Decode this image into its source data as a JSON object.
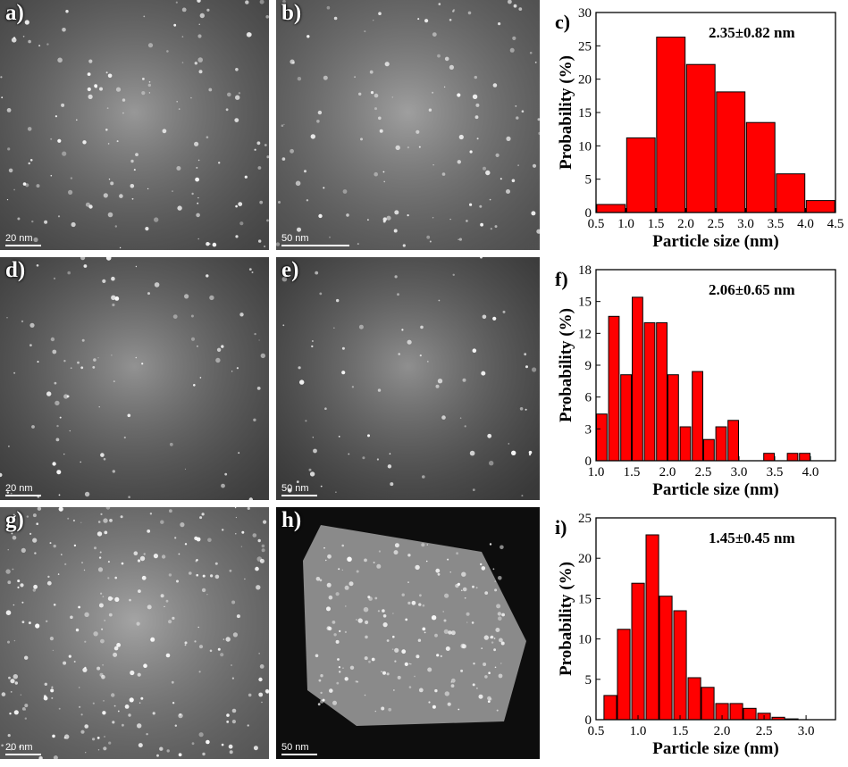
{
  "figure": {
    "panels": [
      {
        "id": "a",
        "label": "a)",
        "scale_bar": "20 nm",
        "tone": "#6a6a6a"
      },
      {
        "id": "b",
        "label": "b)",
        "scale_bar": "50 nm",
        "tone": "#7a7a7a"
      },
      {
        "id": "d",
        "label": "d)",
        "scale_bar": "20 nm",
        "tone": "#5e5e5e"
      },
      {
        "id": "e",
        "label": "e)",
        "scale_bar": "50 nm",
        "tone": "#575757"
      },
      {
        "id": "g",
        "label": "g)",
        "scale_bar": "20 nm",
        "tone": "#858585"
      },
      {
        "id": "h",
        "label": "h)",
        "scale_bar": "50 nm",
        "tone": "#0d0d0d"
      }
    ]
  },
  "chart_data": [
    {
      "id": "c",
      "label": "c)",
      "type": "bar",
      "annotation": "2.35±0.82 nm",
      "xlabel": "Particle size (nm)",
      "ylabel": "Probability (%)",
      "xlim": [
        0.5,
        4.5
      ],
      "ylim": [
        0,
        30
      ],
      "xticks": [
        0.5,
        1.0,
        1.5,
        2.0,
        2.5,
        3.0,
        3.5,
        4.0,
        4.5
      ],
      "yticks": [
        0,
        5,
        10,
        15,
        20,
        25,
        30
      ],
      "bin_width": 0.5,
      "x": [
        0.75,
        1.25,
        1.75,
        2.25,
        2.75,
        3.25,
        3.75,
        4.25
      ],
      "values": [
        1.2,
        11.2,
        26.3,
        22.2,
        18.1,
        13.5,
        5.8,
        1.8
      ],
      "color": "#ff0000"
    },
    {
      "id": "f",
      "label": "f)",
      "type": "bar",
      "annotation": "2.06±0.65 nm",
      "xlabel": "Particle size (nm)",
      "ylabel": "Probability (%)",
      "xlim": [
        1.0,
        4.35
      ],
      "ylim": [
        0,
        18
      ],
      "xticks": [
        1.0,
        1.5,
        2.0,
        2.5,
        3.0,
        3.5,
        4.0
      ],
      "yticks": [
        0,
        3,
        6,
        9,
        12,
        15,
        18
      ],
      "bin_width": 0.167,
      "x": [
        1.08,
        1.25,
        1.42,
        1.58,
        1.75,
        1.92,
        2.08,
        2.25,
        2.42,
        2.58,
        2.75,
        2.92,
        3.08,
        3.25,
        3.42,
        3.58,
        3.75,
        3.92,
        4.08,
        4.25
      ],
      "values": [
        4.4,
        13.6,
        8.1,
        15.4,
        13.0,
        13.0,
        8.1,
        3.2,
        8.4,
        2.0,
        3.2,
        3.8,
        0.0,
        0.0,
        0.7,
        0.0,
        0.7,
        0.7,
        0.0,
        0.0
      ],
      "color": "#ff0000"
    },
    {
      "id": "i",
      "label": "i)",
      "type": "bar",
      "annotation": "1.45±0.45 nm",
      "xlabel": "Particle size (nm)",
      "ylabel": "Probability (%)",
      "xlim": [
        0.5,
        3.35
      ],
      "ylim": [
        0,
        25
      ],
      "xticks": [
        0.5,
        1.0,
        1.5,
        2.0,
        2.5,
        3.0
      ],
      "yticks": [
        0,
        5,
        10,
        15,
        20,
        25
      ],
      "bin_width": 0.167,
      "x": [
        0.67,
        0.83,
        1.0,
        1.17,
        1.33,
        1.5,
        1.67,
        1.83,
        2.0,
        2.17,
        2.33,
        2.5,
        2.67,
        2.83,
        3.0,
        3.17
      ],
      "values": [
        3.0,
        11.2,
        16.9,
        22.9,
        15.3,
        13.5,
        5.2,
        4.0,
        2.0,
        2.0,
        1.4,
        0.8,
        0.3,
        0.1,
        0.0,
        0.0
      ],
      "color": "#ff0000"
    }
  ]
}
